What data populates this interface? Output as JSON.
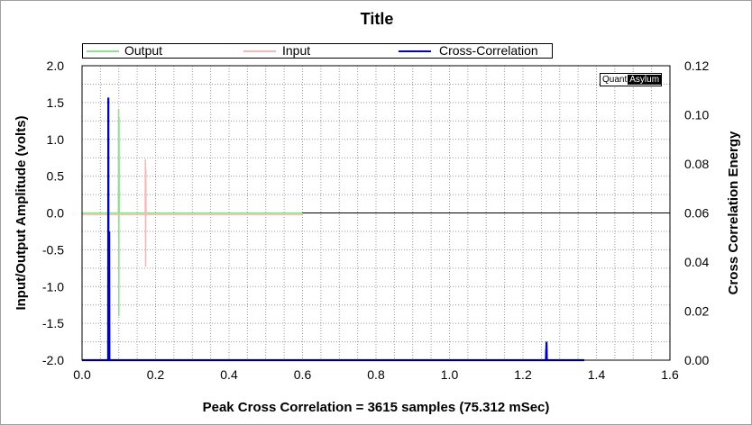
{
  "chart_data": {
    "type": "line",
    "title": "Title",
    "xlabel": "Peak Cross Correlation = 3615 samples  (75.312 mSec)",
    "ylabel": "Input/Output Amplitude (volts)",
    "y2label": "Cross Correlation Energy",
    "xlim": [
      0,
      1.6
    ],
    "ylim": [
      -2,
      2
    ],
    "y2lim": [
      0,
      0.12
    ],
    "x_ticks": [
      "0.0",
      "0.2",
      "0.4",
      "0.6",
      "0.8",
      "1.0",
      "1.2",
      "1.4",
      "1.6"
    ],
    "y_ticks": [
      "2.0",
      "1.5",
      "1.0",
      "0.5",
      "0.0",
      "-0.5",
      "-1.0",
      "-1.5",
      "-2.0"
    ],
    "y2_ticks": [
      "0.12",
      "0.10",
      "0.08",
      "0.06",
      "0.04",
      "0.02",
      "0.00"
    ],
    "grid": true,
    "legend_position": "top",
    "series": [
      {
        "name": "Output",
        "color": "#8fe08f",
        "axis": "left",
        "x": [
          0.0,
          0.099,
          0.0995,
          0.1,
          0.1005,
          0.101,
          0.6
        ],
        "y": [
          0.0,
          0.0,
          1.4,
          -1.4,
          1.3,
          0.0,
          0.0
        ]
      },
      {
        "name": "Input",
        "color": "#f4b8b8",
        "axis": "left",
        "x": [
          0.0,
          0.172,
          0.1725,
          0.173,
          0.1735,
          0.174,
          0.6
        ],
        "y": [
          -0.02,
          -0.02,
          0.73,
          -0.73,
          0.6,
          -0.02,
          -0.02
        ]
      },
      {
        "name": "Cross-Correlation",
        "color": "#0000cc",
        "axis": "right",
        "x": [
          0.0,
          0.071,
          0.0715,
          0.072,
          0.0725,
          0.0735,
          0.074,
          0.0745,
          1.262,
          1.2625,
          1.263,
          1.2635,
          1.264,
          1.2645,
          1.265,
          1.266,
          1.367
        ],
        "y": [
          0.0,
          0.0,
          0.107,
          0.0,
          0.0,
          0.0,
          0.0525,
          0.0,
          0.0,
          0.0,
          0.004,
          0.0045,
          0.0075,
          0.0045,
          0.0,
          0.0,
          0.0
        ]
      }
    ]
  },
  "logo": {
    "part1": "Quant",
    "part2": "Asylum"
  }
}
